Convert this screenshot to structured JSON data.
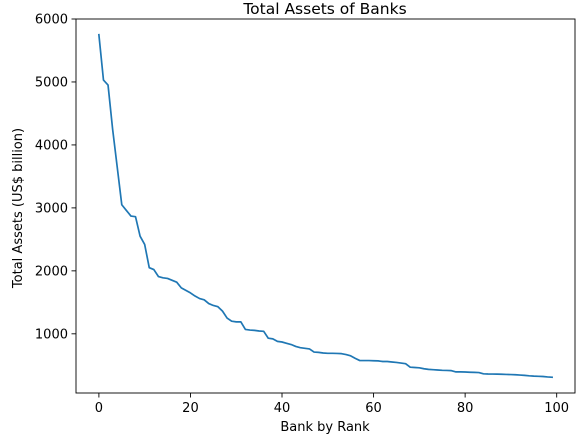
{
  "chart_data": {
    "type": "line",
    "title": "Total Assets of Banks",
    "xlabel": "Bank by Rank",
    "ylabel": "Total Assets (US$ billion)",
    "xlim": [
      -5,
      104
    ],
    "ylim": [
      60,
      6000
    ],
    "xticks": [
      0,
      20,
      40,
      60,
      80,
      100
    ],
    "yticks": [
      1000,
      2000,
      3000,
      4000,
      5000,
      6000
    ],
    "grid": false,
    "line_color": "#1f77b4",
    "series": [
      {
        "x": [
          0,
          1,
          2,
          3,
          4,
          5,
          6,
          7,
          8,
          9,
          10,
          11,
          12,
          13,
          14,
          15,
          16,
          17,
          18,
          19,
          20,
          21,
          22,
          23,
          24,
          25,
          26,
          27,
          28,
          29,
          30,
          31,
          32,
          33,
          34,
          35,
          36,
          37,
          38,
          39,
          40,
          41,
          42,
          43,
          44,
          45,
          46,
          47,
          48,
          49,
          50,
          51,
          52,
          53,
          54,
          55,
          56,
          57,
          58,
          59,
          60,
          61,
          62,
          63,
          64,
          65,
          66,
          67,
          68,
          69,
          70,
          71,
          72,
          73,
          74,
          75,
          76,
          77,
          78,
          79,
          80,
          81,
          82,
          83,
          84,
          85,
          86,
          87,
          88,
          89,
          90,
          91,
          92,
          93,
          94,
          95,
          96,
          97,
          98,
          99
        ],
        "values": [
          5750,
          5030,
          4950,
          4250,
          3650,
          3050,
          2960,
          2870,
          2860,
          2550,
          2420,
          2050,
          2020,
          1910,
          1890,
          1880,
          1850,
          1820,
          1730,
          1690,
          1650,
          1600,
          1560,
          1540,
          1480,
          1450,
          1430,
          1360,
          1250,
          1200,
          1190,
          1190,
          1070,
          1060,
          1055,
          1045,
          1040,
          930,
          920,
          880,
          870,
          850,
          830,
          800,
          780,
          770,
          760,
          710,
          705,
          695,
          690,
          690,
          688,
          685,
          670,
          650,
          610,
          575,
          575,
          575,
          572,
          570,
          560,
          560,
          552,
          545,
          535,
          525,
          470,
          465,
          460,
          445,
          435,
          430,
          425,
          420,
          418,
          415,
          395,
          395,
          393,
          390,
          388,
          385,
          365,
          362,
          361,
          360,
          358,
          355,
          353,
          350,
          345,
          340,
          333,
          328,
          325,
          322,
          315,
          310
        ]
      }
    ]
  }
}
